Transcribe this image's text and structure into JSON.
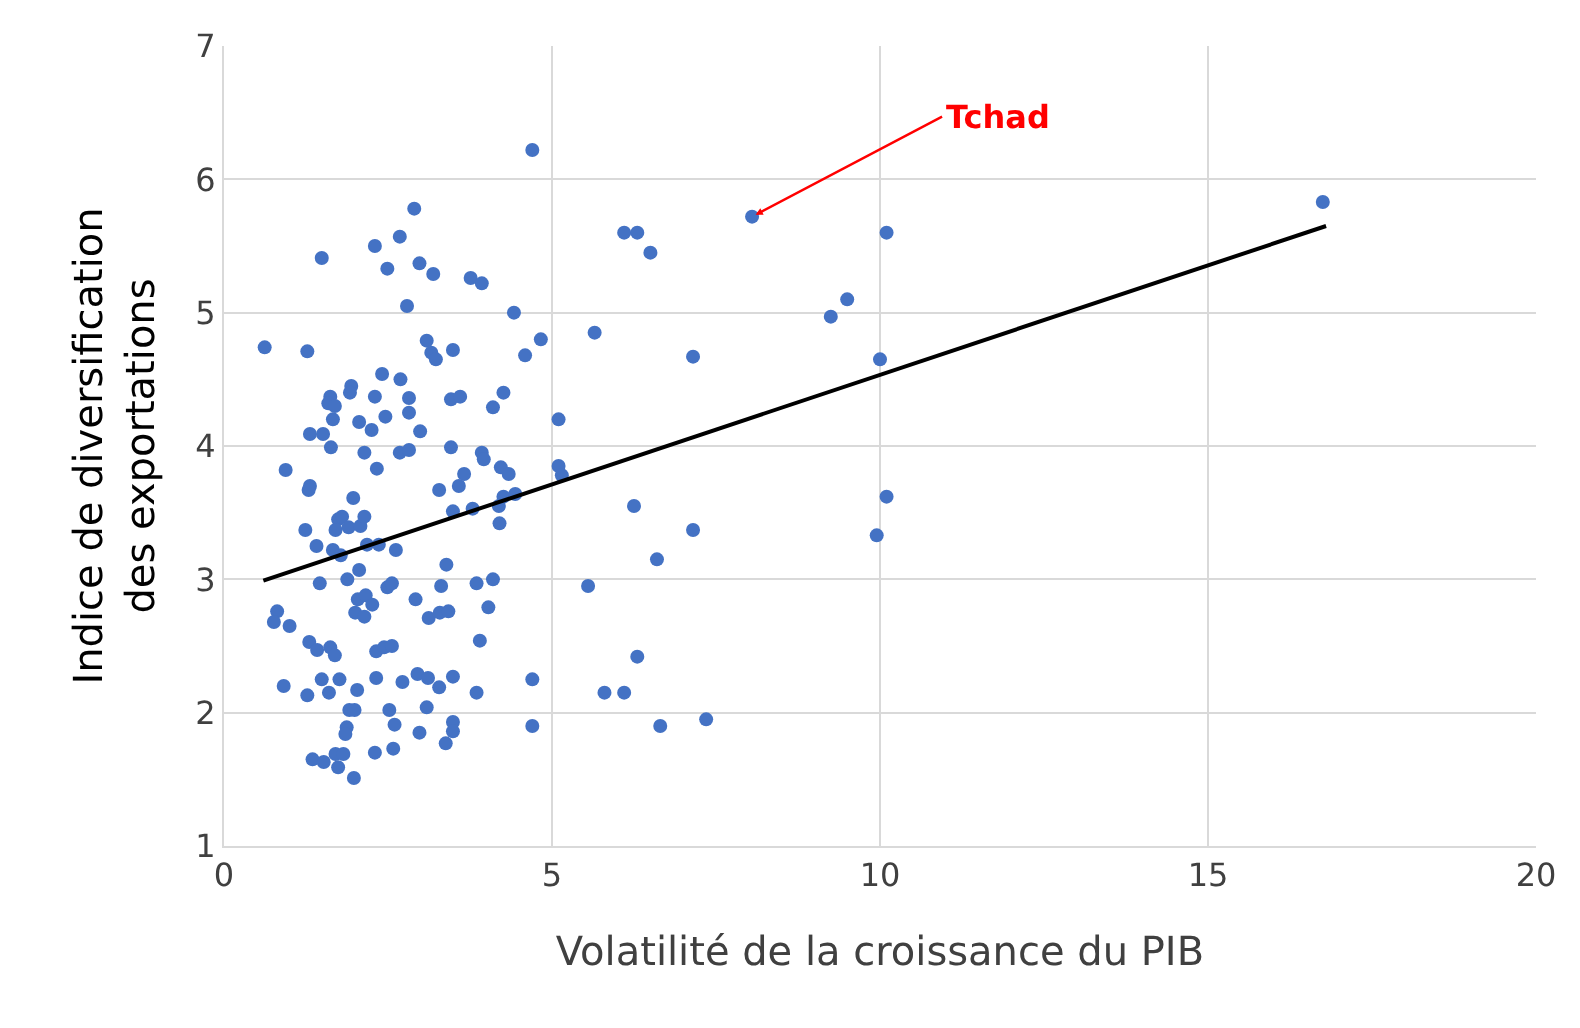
{
  "chart_data": {
    "type": "scatter",
    "xlabel": "Volatilité de la croissance du PIB",
    "ylabel": "Indice de diversification des exportations",
    "xlim": [
      0,
      20
    ],
    "xticks": [
      0,
      5,
      10,
      15,
      20
    ],
    "ylim": [
      1,
      7
    ],
    "yticks": [
      1,
      2,
      3,
      4,
      5,
      6,
      7
    ],
    "grid": true,
    "marker": "circle",
    "annotations": [
      {
        "text": "Tchad",
        "x": 8.05,
        "y": 5.72
      }
    ],
    "series": [
      {
        "color": "#4472c4",
        "x": [
          4.7,
          8.05,
          16.75,
          10.1,
          6.1,
          6.3,
          6.5,
          9.5,
          9.25,
          5.65,
          10.0,
          7.15,
          10.1,
          9.95,
          7.15,
          6.25,
          6.6,
          5.55,
          6.3,
          5.8,
          6.1,
          6.65,
          7.35,
          4.7,
          4.7,
          5.1,
          5.1,
          5.15,
          2.9,
          2.3,
          2.68,
          1.49,
          2.49,
          2.98,
          3.19,
          3.76,
          3.93,
          2.79,
          4.42,
          0.62,
          1.27,
          3.09,
          3.16,
          3.23,
          3.49,
          4.83,
          4.59,
          2.41,
          2.69,
          1.94,
          1.92,
          1.62,
          1.59,
          1.69,
          2.3,
          2.82,
          2.82,
          2.46,
          1.66,
          2.06,
          2.25,
          2.99,
          3.46,
          3.6,
          4.26,
          4.1,
          1.31,
          1.51,
          1.63,
          2.14,
          2.68,
          2.82,
          2.33,
          3.46,
          3.93,
          3.96,
          4.22,
          4.34,
          0.94,
          1.31,
          1.29,
          3.66,
          3.58,
          3.28,
          1.97,
          4.26,
          4.44,
          3.49,
          3.79,
          4.19,
          4.2,
          1.74,
          1.8,
          1.7,
          1.9,
          2.08,
          2.14,
          1.24,
          1.41,
          1.66,
          1.78,
          2.18,
          2.36,
          2.62,
          3.39,
          2.06,
          1.46,
          1.88,
          2.49,
          2.56,
          3.31,
          3.85,
          4.1,
          2.04,
          2.16,
          2.26,
          2.0,
          2.14,
          2.92,
          0.81,
          0.76,
          1.0,
          3.12,
          3.29,
          3.42,
          4.03,
          1.3,
          1.42,
          1.62,
          1.69,
          2.32,
          2.44,
          2.56,
          3.9,
          0.91,
          1.27,
          1.49,
          1.6,
          1.76,
          2.03,
          2.32,
          2.72,
          2.95,
          3.11,
          3.28,
          3.49,
          3.85,
          1.91,
          1.99,
          2.52,
          3.09,
          2.6,
          3.49,
          3.49,
          2.98,
          1.87,
          1.85,
          3.38,
          1.35,
          1.52,
          1.7,
          1.82,
          1.74,
          2.3,
          2.58,
          1.98
        ],
        "values": [
          6.22,
          5.72,
          5.83,
          5.6,
          5.6,
          5.6,
          5.45,
          5.1,
          4.97,
          4.85,
          4.65,
          4.67,
          3.62,
          3.33,
          3.37,
          3.55,
          3.15,
          2.95,
          2.42,
          2.15,
          2.15,
          1.9,
          1.95,
          2.25,
          1.9,
          4.2,
          3.85,
          3.78,
          5.78,
          5.5,
          5.57,
          5.41,
          5.33,
          5.37,
          5.29,
          5.26,
          5.22,
          5.05,
          5.0,
          4.74,
          4.71,
          4.79,
          4.7,
          4.65,
          4.72,
          4.8,
          4.68,
          4.54,
          4.5,
          4.45,
          4.4,
          4.37,
          4.32,
          4.3,
          4.37,
          4.36,
          4.25,
          4.22,
          4.2,
          4.18,
          4.12,
          4.11,
          4.35,
          4.37,
          4.4,
          4.29,
          4.09,
          4.09,
          3.99,
          3.95,
          3.95,
          3.97,
          3.83,
          3.99,
          3.95,
          3.9,
          3.84,
          3.79,
          3.82,
          3.7,
          3.67,
          3.79,
          3.7,
          3.67,
          3.61,
          3.62,
          3.64,
          3.51,
          3.53,
          3.55,
          3.42,
          3.45,
          3.47,
          3.37,
          3.39,
          3.4,
          3.47,
          3.37,
          3.25,
          3.22,
          3.18,
          3.26,
          3.26,
          3.22,
          3.11,
          3.07,
          2.97,
          3.0,
          2.94,
          2.97,
          2.95,
          2.97,
          3.0,
          2.85,
          2.88,
          2.81,
          2.75,
          2.72,
          2.85,
          2.76,
          2.68,
          2.65,
          2.71,
          2.75,
          2.76,
          2.79,
          2.53,
          2.47,
          2.49,
          2.43,
          2.46,
          2.49,
          2.5,
          2.54,
          2.2,
          2.13,
          2.25,
          2.15,
          2.25,
          2.17,
          2.26,
          2.23,
          2.29,
          2.26,
          2.19,
          2.27,
          2.15,
          2.02,
          2.02,
          2.02,
          2.04,
          1.91,
          1.93,
          1.86,
          1.85,
          1.89,
          1.84,
          1.77,
          1.65,
          1.63,
          1.69,
          1.69,
          1.59,
          1.7,
          1.73,
          1.51
        ]
      },
      {
        "type": "line",
        "color": "#000000",
        "x": [
          0.6,
          16.8
        ],
        "values": [
          2.99,
          5.65
        ],
        "marker": "none",
        "line_style": "solid"
      }
    ]
  }
}
